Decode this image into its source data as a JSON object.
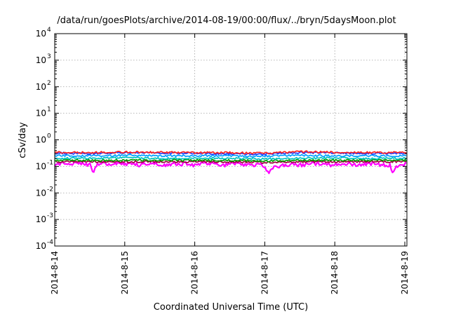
{
  "chart_data": {
    "type": "line",
    "title": "/data/run/goesPlots/archive/2014-08-19/00:00/flux/../bryn/5daysMoon.plot",
    "xlabel": "Coordinated Universal Time (UTC)",
    "ylabel": "cSv/day",
    "yscale": "log",
    "ylim": [
      0.0001,
      10000
    ],
    "xlim": [
      0,
      5.03
    ],
    "grid": true,
    "x_ticks": [
      "2014-8-14",
      "2014-8-15",
      "2014-8-16",
      "2014-8-17",
      "2014-8-18",
      "2014-8-19"
    ],
    "y_ticks": [
      {
        "base": "10",
        "exp": "-4",
        "value": 0.0001
      },
      {
        "base": "10",
        "exp": "-3",
        "value": 0.001
      },
      {
        "base": "10",
        "exp": "-2",
        "value": 0.01
      },
      {
        "base": "10",
        "exp": "-1",
        "value": 0.1
      },
      {
        "base": "10",
        "exp": "0",
        "value": 1
      },
      {
        "base": "10",
        "exp": "1",
        "value": 10
      },
      {
        "base": "10",
        "exp": "2",
        "value": 100
      },
      {
        "base": "10",
        "exp": "3",
        "value": 1000
      },
      {
        "base": "10",
        "exp": "4",
        "value": 10000
      }
    ],
    "series": [
      {
        "color": "#ff00ff",
        "x": [
          0,
          0.1,
          0.2,
          0.3,
          0.4,
          0.5,
          0.55,
          0.6,
          0.7,
          0.8,
          0.9,
          1.0,
          1.1,
          1.2,
          1.3,
          1.4,
          1.5,
          1.6,
          1.7,
          1.8,
          1.9,
          2.0,
          2.1,
          2.2,
          2.3,
          2.4,
          2.5,
          2.6,
          2.7,
          2.8,
          2.9,
          3.0,
          3.05,
          3.1,
          3.2,
          3.3,
          3.4,
          3.5,
          3.6,
          3.7,
          3.8,
          3.9,
          4.0,
          4.1,
          4.2,
          4.3,
          4.4,
          4.5,
          4.6,
          4.7,
          4.8,
          4.82,
          4.9,
          5.0,
          5.03
        ],
        "y": [
          0.12,
          0.13,
          0.11,
          0.14,
          0.12,
          0.12,
          0.06,
          0.12,
          0.13,
          0.11,
          0.13,
          0.12,
          0.13,
          0.11,
          0.12,
          0.13,
          0.12,
          0.11,
          0.13,
          0.12,
          0.13,
          0.11,
          0.12,
          0.13,
          0.12,
          0.11,
          0.12,
          0.13,
          0.12,
          0.11,
          0.12,
          0.1,
          0.05,
          0.09,
          0.1,
          0.11,
          0.12,
          0.11,
          0.12,
          0.13,
          0.12,
          0.11,
          0.12,
          0.13,
          0.12,
          0.11,
          0.12,
          0.13,
          0.12,
          0.11,
          0.11,
          0.05,
          0.11,
          0.12,
          0.12
        ]
      },
      {
        "color": "#a00040",
        "x": [
          0,
          0.5,
          1.0,
          1.5,
          2.0,
          2.5,
          3.0,
          3.5,
          4.0,
          4.5,
          5.0,
          5.03
        ],
        "y": [
          0.15,
          0.15,
          0.15,
          0.15,
          0.15,
          0.15,
          0.14,
          0.15,
          0.15,
          0.15,
          0.15,
          0.15
        ]
      },
      {
        "color": "#00a000",
        "x": [
          0,
          0.5,
          1.0,
          1.5,
          2.0,
          2.5,
          3.0,
          3.5,
          4.0,
          4.5,
          5.0,
          5.03
        ],
        "y": [
          0.17,
          0.17,
          0.17,
          0.17,
          0.17,
          0.17,
          0.16,
          0.17,
          0.17,
          0.17,
          0.17,
          0.17
        ]
      },
      {
        "color": "#00c0c0",
        "x": [
          0,
          0.5,
          1.0,
          1.5,
          2.0,
          2.5,
          3.0,
          3.5,
          4.0,
          4.5,
          5.0,
          5.03
        ],
        "y": [
          0.2,
          0.2,
          0.21,
          0.2,
          0.2,
          0.2,
          0.19,
          0.2,
          0.21,
          0.2,
          0.2,
          0.2
        ]
      },
      {
        "color": "#00a0ff",
        "x": [
          0,
          0.5,
          1.0,
          1.5,
          2.0,
          2.5,
          3.0,
          3.5,
          4.0,
          4.5,
          5.0,
          5.03
        ],
        "y": [
          0.25,
          0.25,
          0.26,
          0.25,
          0.25,
          0.25,
          0.24,
          0.26,
          0.25,
          0.25,
          0.25,
          0.25
        ]
      },
      {
        "color": "#2040ff",
        "x": [
          0,
          0.5,
          1.0,
          1.5,
          2.0,
          2.5,
          3.0,
          3.5,
          4.0,
          4.5,
          5.0,
          5.03
        ],
        "y": [
          0.32,
          0.3,
          0.33,
          0.32,
          0.31,
          0.3,
          0.29,
          0.33,
          0.32,
          0.31,
          0.31,
          0.31
        ]
      },
      {
        "color": "#ff2020",
        "x": [
          0,
          0.5,
          1.0,
          1.5,
          2.0,
          2.5,
          3.0,
          3.5,
          4.0,
          4.5,
          5.0,
          5.03
        ],
        "y": [
          0.34,
          0.33,
          0.35,
          0.34,
          0.33,
          0.33,
          0.31,
          0.36,
          0.34,
          0.33,
          0.33,
          0.33
        ]
      }
    ]
  }
}
